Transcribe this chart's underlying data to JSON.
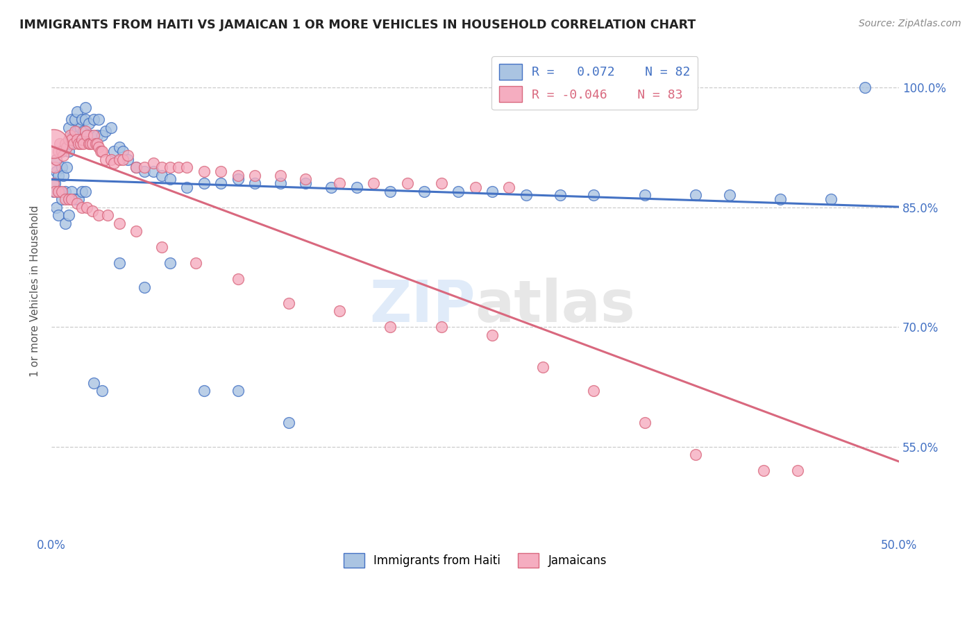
{
  "title": "IMMIGRANTS FROM HAITI VS JAMAICAN 1 OR MORE VEHICLES IN HOUSEHOLD CORRELATION CHART",
  "source": "Source: ZipAtlas.com",
  "ylabel": "1 or more Vehicles in Household",
  "ytick_labels": [
    "100.0%",
    "85.0%",
    "70.0%",
    "55.0%"
  ],
  "ytick_values": [
    1.0,
    0.85,
    0.7,
    0.55
  ],
  "xlim": [
    0.0,
    0.5
  ],
  "ylim": [
    0.44,
    1.05
  ],
  "legend_r_haiti": "R =  0.072",
  "legend_n_haiti": "N = 82",
  "legend_r_jamaican": "R = -0.046",
  "legend_n_jamaican": "N = 83",
  "color_haiti": "#aac4e2",
  "color_jamaican": "#f5adc0",
  "trendline_haiti_color": "#4472c4",
  "trendline_jamaican_color": "#d9687e",
  "haiti_scatter_x": [
    0.001,
    0.002,
    0.003,
    0.003,
    0.004,
    0.005,
    0.006,
    0.006,
    0.007,
    0.008,
    0.009,
    0.01,
    0.01,
    0.011,
    0.012,
    0.013,
    0.014,
    0.015,
    0.015,
    0.016,
    0.017,
    0.018,
    0.019,
    0.02,
    0.02,
    0.022,
    0.023,
    0.025,
    0.027,
    0.028,
    0.03,
    0.032,
    0.035,
    0.037,
    0.04,
    0.042,
    0.045,
    0.05,
    0.055,
    0.06,
    0.065,
    0.07,
    0.08,
    0.09,
    0.1,
    0.11,
    0.12,
    0.135,
    0.15,
    0.165,
    0.18,
    0.2,
    0.22,
    0.24,
    0.26,
    0.28,
    0.3,
    0.32,
    0.35,
    0.38,
    0.4,
    0.43,
    0.46,
    0.48,
    0.003,
    0.004,
    0.006,
    0.008,
    0.01,
    0.012,
    0.014,
    0.016,
    0.018,
    0.02,
    0.025,
    0.03,
    0.04,
    0.055,
    0.07,
    0.09,
    0.11,
    0.14
  ],
  "haiti_scatter_y": [
    0.87,
    0.88,
    0.895,
    0.91,
    0.89,
    0.87,
    0.9,
    0.92,
    0.89,
    0.87,
    0.9,
    0.92,
    0.95,
    0.93,
    0.96,
    0.94,
    0.96,
    0.945,
    0.97,
    0.94,
    0.95,
    0.96,
    0.945,
    0.96,
    0.975,
    0.955,
    0.94,
    0.96,
    0.94,
    0.96,
    0.94,
    0.945,
    0.95,
    0.92,
    0.925,
    0.92,
    0.91,
    0.9,
    0.895,
    0.895,
    0.89,
    0.885,
    0.875,
    0.88,
    0.88,
    0.885,
    0.88,
    0.88,
    0.88,
    0.875,
    0.875,
    0.87,
    0.87,
    0.87,
    0.87,
    0.865,
    0.865,
    0.865,
    0.865,
    0.865,
    0.865,
    0.86,
    0.86,
    1.0,
    0.85,
    0.84,
    0.86,
    0.83,
    0.84,
    0.87,
    0.86,
    0.86,
    0.87,
    0.87,
    0.63,
    0.62,
    0.78,
    0.75,
    0.78,
    0.62,
    0.62,
    0.58
  ],
  "jamaican_scatter_x": [
    0.001,
    0.002,
    0.003,
    0.004,
    0.005,
    0.006,
    0.007,
    0.008,
    0.009,
    0.01,
    0.011,
    0.012,
    0.013,
    0.014,
    0.015,
    0.016,
    0.017,
    0.018,
    0.019,
    0.02,
    0.021,
    0.022,
    0.023,
    0.024,
    0.025,
    0.026,
    0.027,
    0.028,
    0.029,
    0.03,
    0.032,
    0.035,
    0.037,
    0.04,
    0.042,
    0.045,
    0.05,
    0.055,
    0.06,
    0.065,
    0.07,
    0.075,
    0.08,
    0.09,
    0.1,
    0.11,
    0.12,
    0.135,
    0.15,
    0.17,
    0.19,
    0.21,
    0.23,
    0.25,
    0.27,
    0.002,
    0.004,
    0.006,
    0.008,
    0.01,
    0.012,
    0.015,
    0.018,
    0.021,
    0.024,
    0.028,
    0.033,
    0.04,
    0.05,
    0.065,
    0.085,
    0.11,
    0.14,
    0.17,
    0.2,
    0.23,
    0.26,
    0.29,
    0.32,
    0.35,
    0.38,
    0.42,
    0.44
  ],
  "jamaican_scatter_y": [
    0.88,
    0.9,
    0.91,
    0.92,
    0.93,
    0.92,
    0.915,
    0.93,
    0.925,
    0.935,
    0.94,
    0.935,
    0.93,
    0.945,
    0.935,
    0.93,
    0.93,
    0.935,
    0.93,
    0.945,
    0.94,
    0.93,
    0.93,
    0.93,
    0.94,
    0.93,
    0.93,
    0.925,
    0.92,
    0.92,
    0.91,
    0.91,
    0.905,
    0.91,
    0.91,
    0.915,
    0.9,
    0.9,
    0.905,
    0.9,
    0.9,
    0.9,
    0.9,
    0.895,
    0.895,
    0.89,
    0.89,
    0.89,
    0.885,
    0.88,
    0.88,
    0.88,
    0.88,
    0.875,
    0.875,
    0.87,
    0.87,
    0.87,
    0.86,
    0.86,
    0.86,
    0.855,
    0.85,
    0.85,
    0.845,
    0.84,
    0.84,
    0.83,
    0.82,
    0.8,
    0.78,
    0.76,
    0.73,
    0.72,
    0.7,
    0.7,
    0.69,
    0.65,
    0.62,
    0.58,
    0.54,
    0.52,
    0.52
  ],
  "jamaican_large_x": [
    0.0
  ],
  "jamaican_large_y": [
    0.93
  ]
}
